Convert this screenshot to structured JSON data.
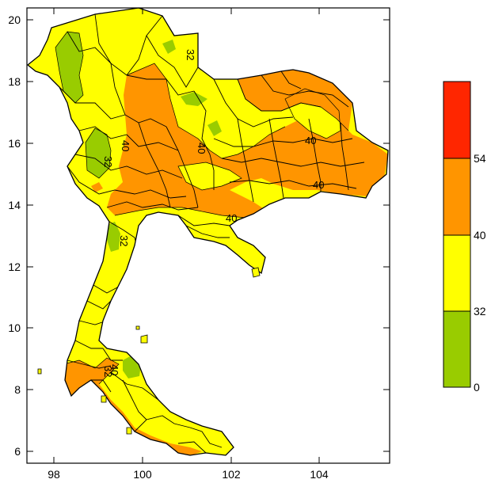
{
  "map": {
    "x_ticks": [
      "98",
      "100",
      "102",
      "104"
    ],
    "y_ticks": [
      "20",
      "18",
      "16",
      "14",
      "12",
      "10",
      "8",
      "6"
    ],
    "contour_labels": [
      "32",
      "32",
      "40",
      "32",
      "40",
      "40",
      "40",
      "40",
      "32",
      "40"
    ]
  },
  "legend": {
    "bins": [
      {
        "from": 54,
        "to": null,
        "color": "#ff2600"
      },
      {
        "from": 40,
        "to": 54,
        "color": "#ff9500"
      },
      {
        "from": 32,
        "to": 40,
        "color": "#ffff00"
      },
      {
        "from": 0,
        "to": 32,
        "color": "#99cc00"
      }
    ],
    "labels": [
      "54",
      "40",
      "32",
      "0"
    ]
  }
}
